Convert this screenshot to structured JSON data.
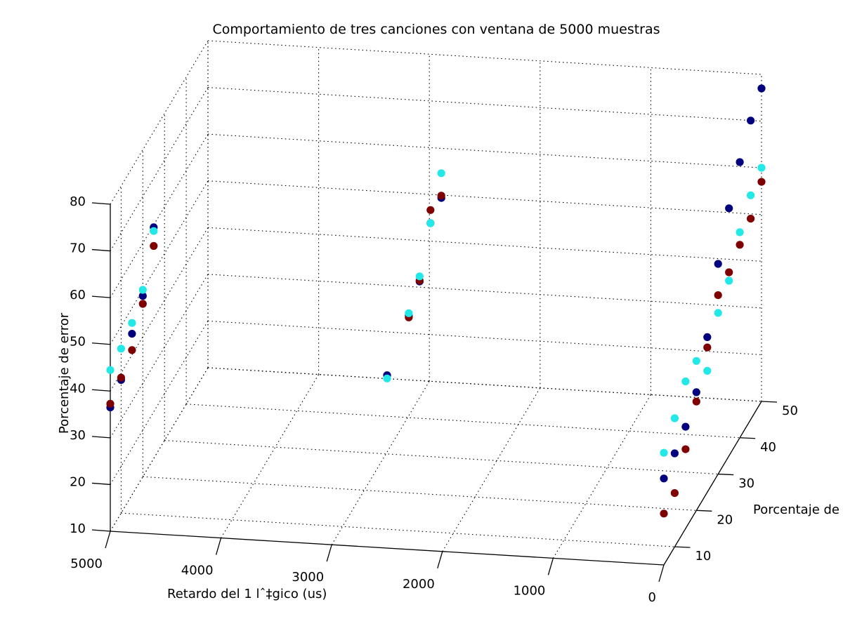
{
  "chart_data": {
    "type": "scatter3d",
    "title": "Comportamiento de tres canciones con ventana de 5000 muestras",
    "xlabel": "Retardo del 1 lˆ‡gico (us)",
    "ylabel": "Porcentaje de",
    "zlabel": "Porcentaje de error",
    "xlim": [
      0,
      5000
    ],
    "ylim": [
      5,
      50
    ],
    "zlim": [
      10,
      80
    ],
    "x_ticks": [
      "0",
      "1000",
      "2000",
      "3000",
      "4000",
      "5000"
    ],
    "y_ticks": [
      "10",
      "20",
      "30",
      "40",
      "50"
    ],
    "z_ticks": [
      "10",
      "20",
      "30",
      "40",
      "50",
      "60",
      "70",
      "80"
    ],
    "grid": true,
    "colors": [
      "#00007f",
      "#7f0000",
      "#22e8e8"
    ],
    "series": [
      {
        "color": "#00007f",
        "points": [
          [
            5000,
            5,
            36.5
          ],
          [
            5000,
            10,
            38.5
          ],
          [
            5000,
            15,
            44.5
          ],
          [
            5000,
            20,
            48.7
          ],
          [
            5000,
            25,
            59.5
          ],
          [
            2500,
            5,
            47
          ],
          [
            2500,
            15,
            52
          ],
          [
            2500,
            20,
            55.4
          ],
          [
            2500,
            25,
            64
          ],
          [
            2500,
            30,
            65.5
          ],
          [
            0,
            5,
            28.5
          ],
          [
            0,
            10,
            30
          ],
          [
            0,
            15,
            31.8
          ],
          [
            0,
            20,
            35.3
          ],
          [
            0,
            25,
            43.2
          ],
          [
            0,
            30,
            55
          ],
          [
            0,
            35,
            63
          ],
          [
            0,
            40,
            69
          ],
          [
            0,
            45,
            74
          ],
          [
            0,
            50,
            77
          ]
        ]
      },
      {
        "color": "#7f0000",
        "points": [
          [
            5000,
            5,
            37.3
          ],
          [
            5000,
            10,
            39
          ],
          [
            5000,
            15,
            41
          ],
          [
            5000,
            20,
            47
          ],
          [
            5000,
            25,
            55.5
          ],
          [
            2500,
            15,
            51.6
          ],
          [
            2500,
            20,
            55.6
          ],
          [
            2500,
            25,
            66.8
          ],
          [
            2500,
            30,
            66
          ],
          [
            0,
            5,
            21
          ],
          [
            0,
            10,
            21.5
          ],
          [
            0,
            15,
            27
          ],
          [
            0,
            20,
            33.3
          ],
          [
            0,
            25,
            41
          ],
          [
            0,
            30,
            48.3
          ],
          [
            0,
            35,
            49.3
          ],
          [
            0,
            40,
            51.3
          ],
          [
            0,
            45,
            53
          ],
          [
            0,
            50,
            57
          ]
        ]
      },
      {
        "color": "#22e8e8",
        "points": [
          [
            5000,
            5,
            44.5
          ],
          [
            5000,
            10,
            45.2
          ],
          [
            5000,
            15,
            46.8
          ],
          [
            5000,
            20,
            50
          ],
          [
            5000,
            25,
            58.7
          ],
          [
            2500,
            5,
            46.3
          ],
          [
            2500,
            15,
            52.5
          ],
          [
            2500,
            20,
            56.5
          ],
          [
            2500,
            25,
            64
          ],
          [
            2500,
            30,
            70.8
          ],
          [
            0,
            5,
            34
          ],
          [
            0,
            10,
            37.5
          ],
          [
            0,
            15,
            41.5
          ],
          [
            0,
            20,
            42
          ],
          [
            0,
            25,
            36
          ],
          [
            0,
            30,
            44.5
          ],
          [
            0,
            35,
            47.5
          ],
          [
            0,
            40,
            54
          ],
          [
            0,
            45,
            58
          ],
          [
            0,
            50,
            60
          ]
        ]
      }
    ]
  }
}
